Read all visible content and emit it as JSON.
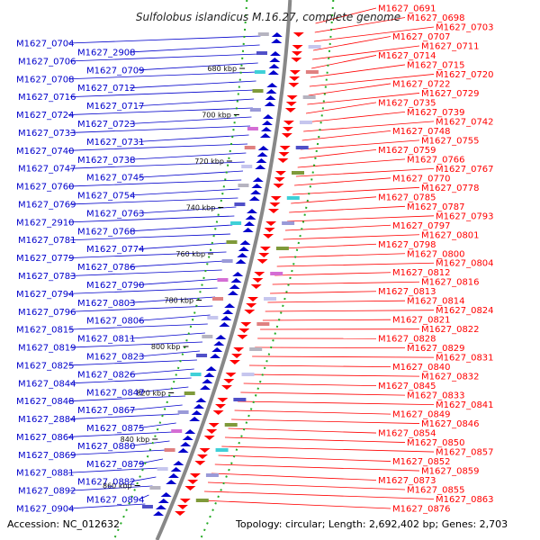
{
  "title": "Sulfolobus islandicus M.16.27, complete genome",
  "accession_text": "Accession: NC_012632",
  "summary_text": "Topology: circular; Length: 2,692,402 bp; Genes: 2,703",
  "colors": {
    "forward": "#0000cc",
    "reverse": "#ff0000",
    "backbone": "#888888",
    "dots": "#22aa22"
  },
  "kbp_ticks": [
    "680 kbp",
    "700 kbp",
    "720 kbp",
    "740 kbp",
    "760 kbp",
    "780 kbp",
    "800 kbp",
    "820 kbp",
    "840 kbp",
    "860 kbp"
  ],
  "left_labels": [
    "M1627_0704",
    "M1627_2908",
    "M1627_0706",
    "M1627_0709",
    "M1627_0708",
    "M1627_0712",
    "M1627_0716",
    "M1627_0717",
    "M1627_0724",
    "M1627_0723",
    "M1627_0733",
    "M1627_0731",
    "M1627_0740",
    "M1627_0738",
    "M1627_0747",
    "M1627_0745",
    "M1627_0760",
    "M1627_0754",
    "M1627_0769",
    "M1627_0763",
    "M1627_2910",
    "M1627_0768",
    "M1627_0781",
    "M1627_0774",
    "M1627_0779",
    "M1627_0786",
    "M1627_0783",
    "M1627_0790",
    "M1627_0794",
    "M1627_0803",
    "M1627_0796",
    "M1627_0806",
    "M1627_0815",
    "M1627_0811",
    "M1627_0819",
    "M1627_0823",
    "M1627_0825",
    "M1627_0826",
    "M1627_0844",
    "M1627_0847",
    "M1627_0848",
    "M1627_0867",
    "M1627_2884",
    "M1627_0875",
    "M1627_0864",
    "M1627_0880",
    "M1627_0869",
    "M1627_0879",
    "M1627_0881",
    "M1627_0882",
    "M1627_0892",
    "M1627_0894",
    "M1627_0904"
  ],
  "right_labels": [
    "M1627_0691",
    "M1627_0698",
    "M1627_0703",
    "M1627_0707",
    "M1627_0711",
    "M1627_0714",
    "M1627_0715",
    "M1627_0720",
    "M1627_0722",
    "M1627_0729",
    "M1627_0735",
    "M1627_0739",
    "M1627_0742",
    "M1627_0748",
    "M1627_0755",
    "M1627_0759",
    "M1627_0766",
    "M1627_0767",
    "M1627_0770",
    "M1627_0778",
    "M1627_0785",
    "M1627_0787",
    "M1627_0793",
    "M1627_0797",
    "M1627_0801",
    "M1627_0798",
    "M1627_0800",
    "M1627_0804",
    "M1627_0812",
    "M1627_0816",
    "M1627_0813",
    "M1627_0814",
    "M1627_0824",
    "M1627_0821",
    "M1627_0822",
    "M1627_0828",
    "M1627_0829",
    "M1627_0831",
    "M1627_0840",
    "M1627_0832",
    "M1627_0845",
    "M1627_0833",
    "M1627_0841",
    "M1627_0849",
    "M1627_0846",
    "M1627_0854",
    "M1627_0850",
    "M1627_0857",
    "M1627_0852",
    "M1627_0859",
    "M1627_0873",
    "M1627_0855",
    "M1627_0863",
    "M1627_0876"
  ]
}
